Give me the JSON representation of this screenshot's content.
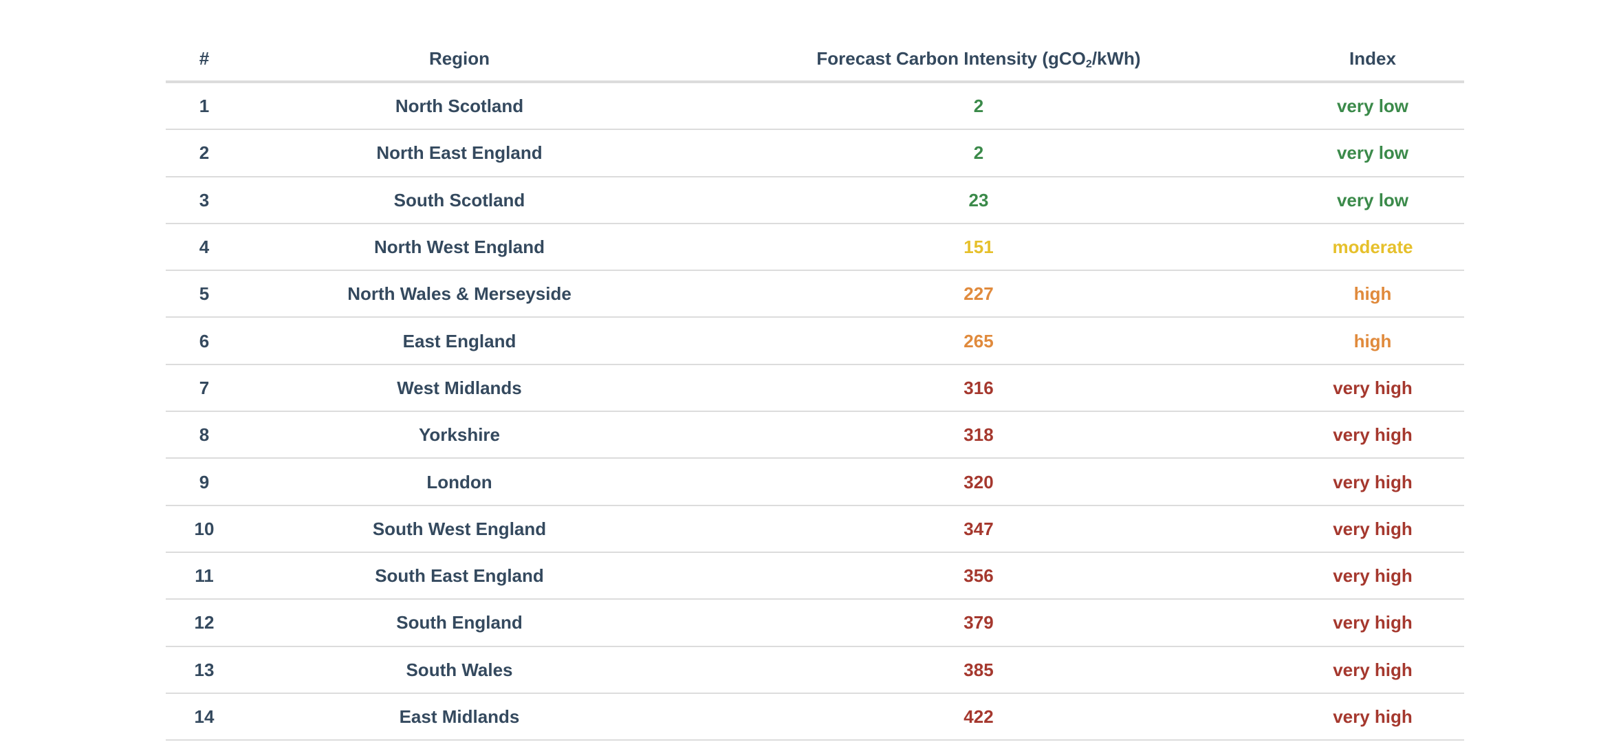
{
  "table": {
    "headers": {
      "num": "#",
      "region": "Region",
      "ci_prefix": "Forecast Carbon Intensity (gCO",
      "ci_sub": "2",
      "ci_suffix": "/kWh)",
      "index": "Index"
    },
    "index_colors": {
      "very low": "#3b8a4a",
      "moderate": "#e6c02b",
      "high": "#e08a3c",
      "very high": "#a5382e"
    },
    "rows": [
      {
        "num": "1",
        "region": "North Scotland",
        "intensity": "2",
        "index": "very low"
      },
      {
        "num": "2",
        "region": "North East England",
        "intensity": "2",
        "index": "very low"
      },
      {
        "num": "3",
        "region": "South Scotland",
        "intensity": "23",
        "index": "very low"
      },
      {
        "num": "4",
        "region": "North West England",
        "intensity": "151",
        "index": "moderate"
      },
      {
        "num": "5",
        "region": "North Wales & Merseyside",
        "intensity": "227",
        "index": "high"
      },
      {
        "num": "6",
        "region": "East England",
        "intensity": "265",
        "index": "high"
      },
      {
        "num": "7",
        "region": "West Midlands",
        "intensity": "316",
        "index": "very high"
      },
      {
        "num": "8",
        "region": "Yorkshire",
        "intensity": "318",
        "index": "very high"
      },
      {
        "num": "9",
        "region": "London",
        "intensity": "320",
        "index": "very high"
      },
      {
        "num": "10",
        "region": "South West England",
        "intensity": "347",
        "index": "very high"
      },
      {
        "num": "11",
        "region": "South East England",
        "intensity": "356",
        "index": "very high"
      },
      {
        "num": "12",
        "region": "South England",
        "intensity": "379",
        "index": "very high"
      },
      {
        "num": "13",
        "region": "South Wales",
        "intensity": "385",
        "index": "very high"
      },
      {
        "num": "14",
        "region": "East Midlands",
        "intensity": "422",
        "index": "very high"
      }
    ]
  }
}
